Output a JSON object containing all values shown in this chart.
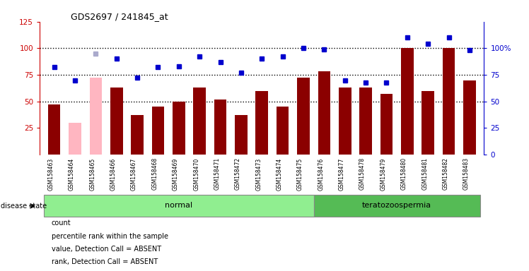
{
  "title": "GDS2697 / 241845_at",
  "samples": [
    "GSM158463",
    "GSM158464",
    "GSM158465",
    "GSM158466",
    "GSM158467",
    "GSM158468",
    "GSM158469",
    "GSM158470",
    "GSM158471",
    "GSM158472",
    "GSM158473",
    "GSM158474",
    "GSM158475",
    "GSM158476",
    "GSM158477",
    "GSM158478",
    "GSM158479",
    "GSM158480",
    "GSM158481",
    "GSM158482",
    "GSM158483"
  ],
  "count_values": [
    47,
    30,
    72,
    63,
    37,
    45,
    50,
    63,
    52,
    37,
    60,
    45,
    72,
    78,
    63,
    63,
    57,
    100,
    60,
    100,
    70
  ],
  "absent_count_indices": [
    1,
    2
  ],
  "rank_values": [
    82,
    70,
    95,
    90,
    72,
    82,
    83,
    92,
    87,
    77,
    90,
    92,
    100,
    99,
    70,
    68,
    68,
    110,
    104,
    110,
    98
  ],
  "absent_rank_indices": [
    2
  ],
  "disease_groups": [
    {
      "label": "normal",
      "start": 0,
      "end": 13,
      "color": "#90EE90"
    },
    {
      "label": "teratozoospermia",
      "start": 13,
      "end": 21,
      "color": "#55BB55"
    }
  ],
  "left_ylim": [
    0,
    125
  ],
  "left_yticks": [
    25,
    50,
    75,
    100,
    125
  ],
  "right_yticks": [
    0,
    25,
    50,
    75,
    100
  ],
  "right_yticklabels": [
    "0",
    "25",
    "50",
    "75",
    "100%"
  ],
  "bar_color": "#8B0000",
  "absent_bar_color": "#FFB6C1",
  "rank_color": "#0000CD",
  "absent_rank_color": "#AAAACC",
  "dotted_line_values": [
    50,
    75,
    100
  ],
  "legend_items": [
    {
      "color": "#8B0000",
      "label": "count"
    },
    {
      "color": "#0000CD",
      "label": "percentile rank within the sample"
    },
    {
      "color": "#FFB6C1",
      "label": "value, Detection Call = ABSENT"
    },
    {
      "color": "#AAAACC",
      "label": "rank, Detection Call = ABSENT"
    }
  ],
  "bg_color": "#FFFFFF",
  "tick_label_area_color": "#D3D3D3"
}
